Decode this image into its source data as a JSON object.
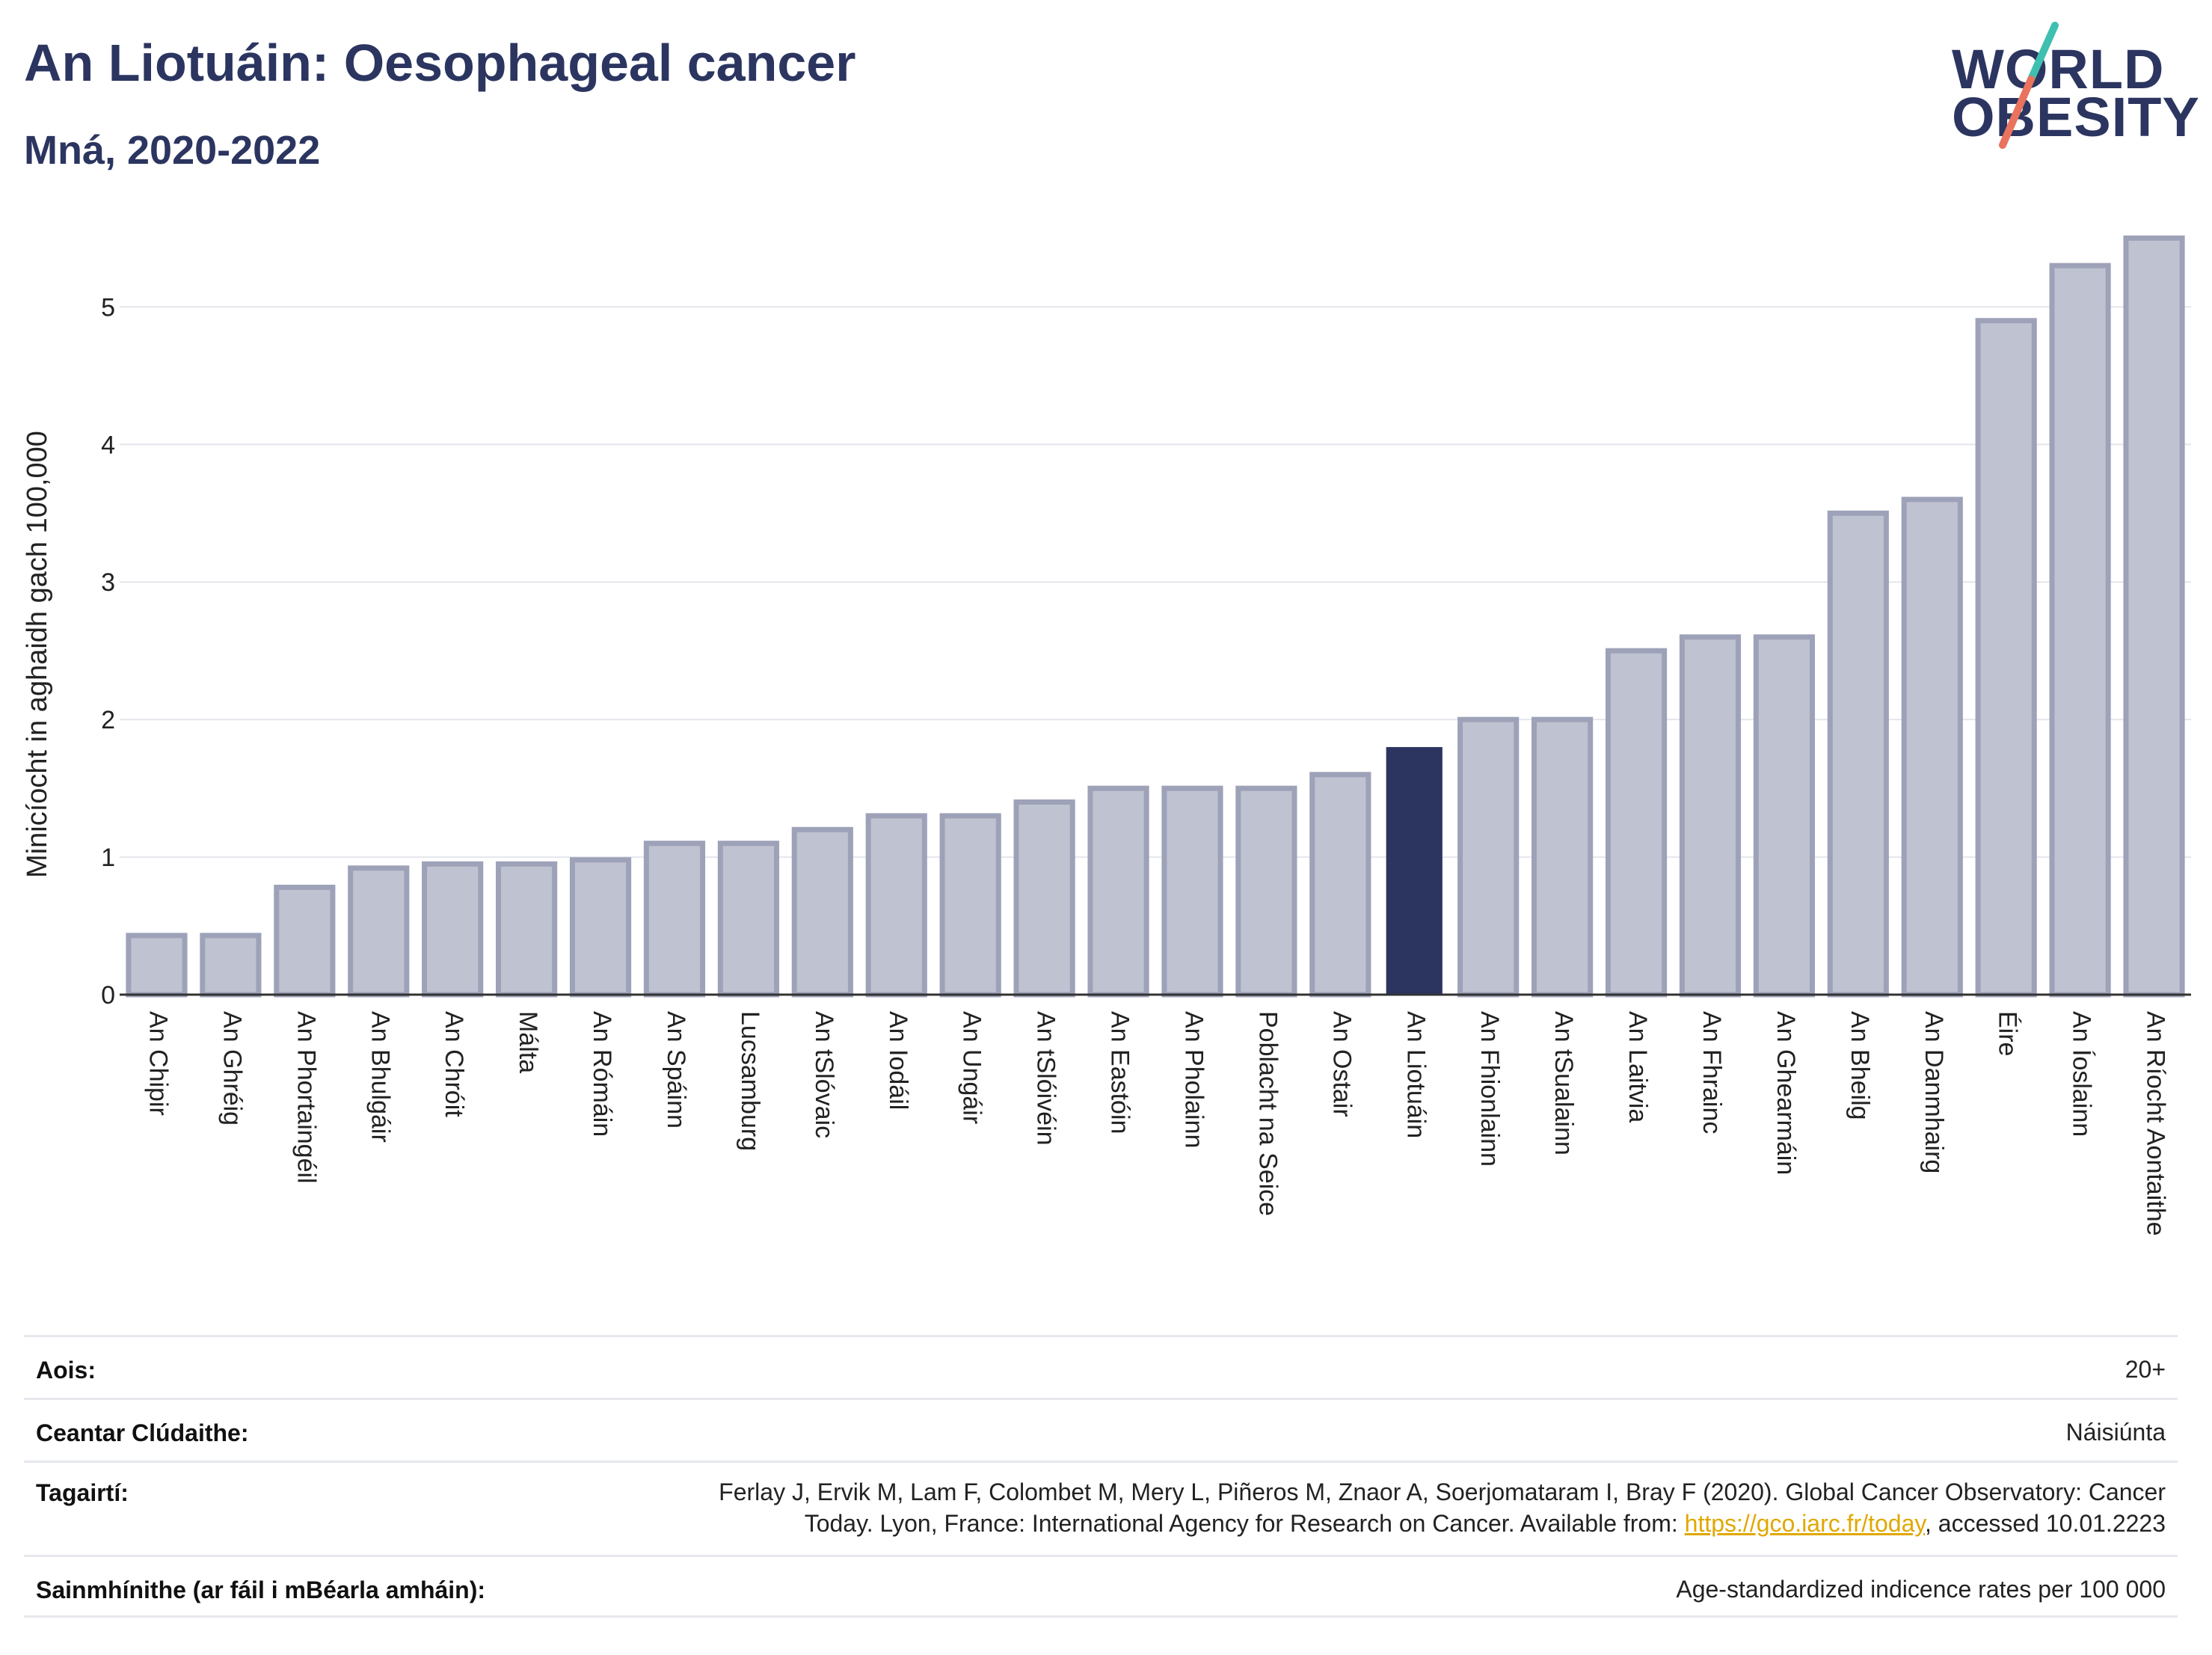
{
  "header": {
    "title": "An Liotuáin: Oesophageal cancer",
    "subtitle": "Mná, 2020-2022"
  },
  "logo": {
    "line1": "WORLD",
    "line2": "OBESITY",
    "slash_colors": [
      "#3fbfb0",
      "#e8735e"
    ]
  },
  "colors": {
    "highlight": "#2b3560",
    "bar_fill": "#bfc2d0",
    "bar_stroke": "#9ea2b8",
    "grid": "#e4e6ec"
  },
  "chart_data": {
    "type": "bar",
    "ylabel": "Minicíocht in aghaidh gach 100,000",
    "ylim": [
      0,
      5.6
    ],
    "yticks": [
      0,
      1,
      2,
      3,
      4,
      5
    ],
    "grid": true,
    "highlight": "An Liotuáin",
    "categories": [
      "An Chipir",
      "An Ghréig",
      "An Phortaingéil",
      "An Bhulgáir",
      "An Chróit",
      "Málta",
      "An Rómáin",
      "An Spáinn",
      "Lucsamburg",
      "An tSlóvaic",
      "An Iodáil",
      "An Ungáir",
      "An tSlóivéin",
      "An Eastóin",
      "An Pholainn",
      "Poblacht na Seice",
      "An Ostair",
      "An Liotuáin",
      "An Fhionlainn",
      "An tSualainn",
      "An Laitvia",
      "An Fhrainc",
      "An Ghearmáin",
      "An Bheilg",
      "An Danmhairg",
      "Éire",
      "An Íoslainn",
      "An Ríocht Aontaithe"
    ],
    "values": [
      0.43,
      0.43,
      0.78,
      0.92,
      0.95,
      0.95,
      0.98,
      1.1,
      1.1,
      1.2,
      1.3,
      1.3,
      1.4,
      1.5,
      1.5,
      1.5,
      1.6,
      1.8,
      2.0,
      2.0,
      2.5,
      2.6,
      2.6,
      3.5,
      3.6,
      4.9,
      5.3,
      5.5
    ]
  },
  "info": {
    "age_label": "Aois:",
    "age_value": "20+",
    "area_label": "Ceantar Clúdaithe:",
    "area_value": "Náisiúnta",
    "ref_label": "Tagairtí:",
    "ref_line1": "Ferlay J, Ervik M, Lam F, Colombet M, Mery L, Piñeros M, Znaor A, Soerjomataram I, Bray F (2020). Global Cancer Observatory: Cancer",
    "ref_line2_pre": "Today. Lyon, France: International Agency for Research on Cancer. Available from: ",
    "ref_link": "https://gco.iarc.fr/today",
    "ref_line2_post": ", accessed 10.01.2223",
    "def_label": "Sainmhínithe (ar fáil i mBéarla amháin):",
    "def_value": "Age-standardized indicence rates per 100 000"
  }
}
